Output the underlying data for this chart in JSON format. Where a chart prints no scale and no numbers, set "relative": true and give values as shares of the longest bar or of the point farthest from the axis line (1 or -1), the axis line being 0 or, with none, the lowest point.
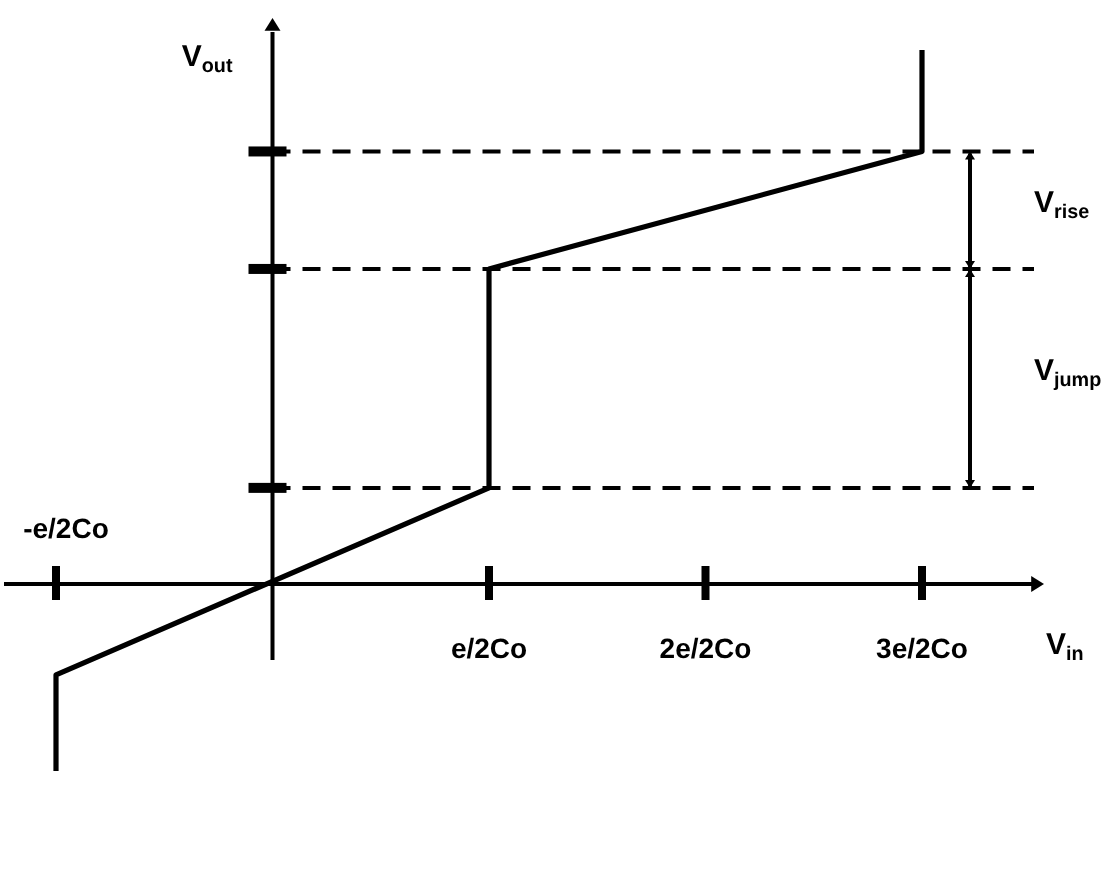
{
  "chart_data": {
    "type": "line",
    "xlabel": "V$_{in}$",
    "ylabel": "V$_{out}$",
    "relative": true,
    "tick_labels": "x",
    "categories": [
      "-e/2Co",
      null,
      "e/2Co",
      "2e/2Co",
      "3e/2Co"
    ],
    "series": [
      {
        "color": "#000000",
        "x": [
          "-e/2Co",
          "-e/2Co",
          "e/2Co",
          "e/2Co",
          "3e/2Co",
          "3e/2Co"
        ],
        "values": [
          -0.35,
          -0.17,
          0.18,
          0.59,
          0.81,
          1
        ]
      }
    ],
    "ref_lines": [
      {
        "axis": "y",
        "value": 0.18,
        "color": "#000000",
        "line_style": "dashed"
      },
      {
        "axis": "y",
        "value": 0.59,
        "color": "#000000",
        "line_style": "dashed"
      },
      {
        "axis": "y",
        "value": 0.81,
        "color": "#000000",
        "line_style": "dashed"
      }
    ],
    "annotations": [
      "V$_{rise}$",
      "V$_{jump}$"
    ]
  }
}
